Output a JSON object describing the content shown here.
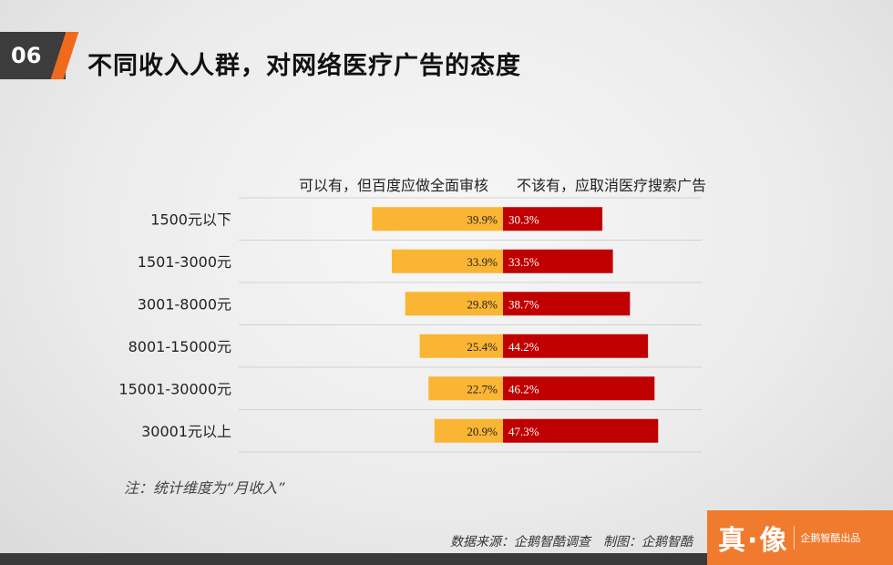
{
  "slide_number": "06",
  "title": "不同收入人群，对网络医疗广告的态度",
  "note": "注：统计维度为“月收入”",
  "source": "数据来源：企鹅智酷调查　制图：企鹅智酷",
  "brand": {
    "logo": "真·像",
    "sub": "企鹅智酷出品"
  },
  "colors": {
    "left_series": "#fbb534",
    "right_series": "#c00000",
    "accent": "#f06a1e"
  },
  "chart_data": {
    "type": "bar",
    "orientation": "horizontal-diverging",
    "categories": [
      "1500元以下",
      "1501-3000元",
      "3001-8000元",
      "8001-15000元",
      "15001-30000元",
      "30001元以上"
    ],
    "series": [
      {
        "name": "可以有，但百度应做全面审核",
        "values": [
          39.9,
          33.9,
          29.8,
          25.4,
          22.7,
          20.9
        ],
        "labels": [
          "39.9%",
          "33.9%",
          "29.8%",
          "25.4%",
          "22.7%",
          "20.9%"
        ]
      },
      {
        "name": "不该有，应取消医疗搜索广告",
        "values": [
          30.3,
          33.5,
          38.7,
          44.2,
          46.2,
          47.3
        ],
        "labels": [
          "30.3%",
          "33.5%",
          "38.7%",
          "44.2%",
          "46.2%",
          "47.3%"
        ]
      }
    ],
    "unit": "%",
    "grid": false
  }
}
